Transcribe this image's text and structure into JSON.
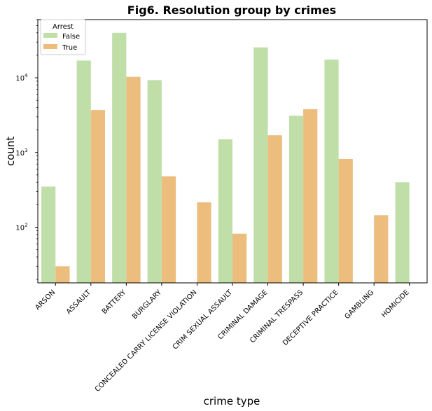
{
  "chart_data": {
    "type": "bar",
    "title": "Fig6. Resolution group by crimes",
    "xlabel": "crime type",
    "ylabel": "count",
    "yscale": "log",
    "ylim": [
      18,
      60000
    ],
    "y_ticks": [
      {
        "value": 100,
        "base": "10",
        "exp": "2"
      },
      {
        "value": 1000,
        "base": "10",
        "exp": "3"
      },
      {
        "value": 10000,
        "base": "10",
        "exp": "4"
      }
    ],
    "categories": [
      "ARSON",
      "ASSAULT",
      "BATTERY",
      "BURGLARY",
      "CONCEALED CARRY LICENSE VIOLATION",
      "CRIM SEXUAL ASSAULT",
      "CRIMINAL DAMAGE",
      "CRIMINAL TRESPASS",
      "DECEPTIVE PRACTICE",
      "GAMBLING",
      "HOMICIDE"
    ],
    "legend_title": "Arrest",
    "legend_position": "top-left",
    "grid": false,
    "series": [
      {
        "name": "False",
        "color": "#c0dfa8",
        "values": [
          350,
          17000,
          40000,
          9300,
          null,
          1500,
          25500,
          3100,
          17500,
          null,
          400
        ]
      },
      {
        "name": "True",
        "color": "#edbd7e",
        "values": [
          30,
          3700,
          10300,
          480,
          215,
          82,
          1700,
          3800,
          820,
          145,
          null
        ]
      }
    ]
  }
}
